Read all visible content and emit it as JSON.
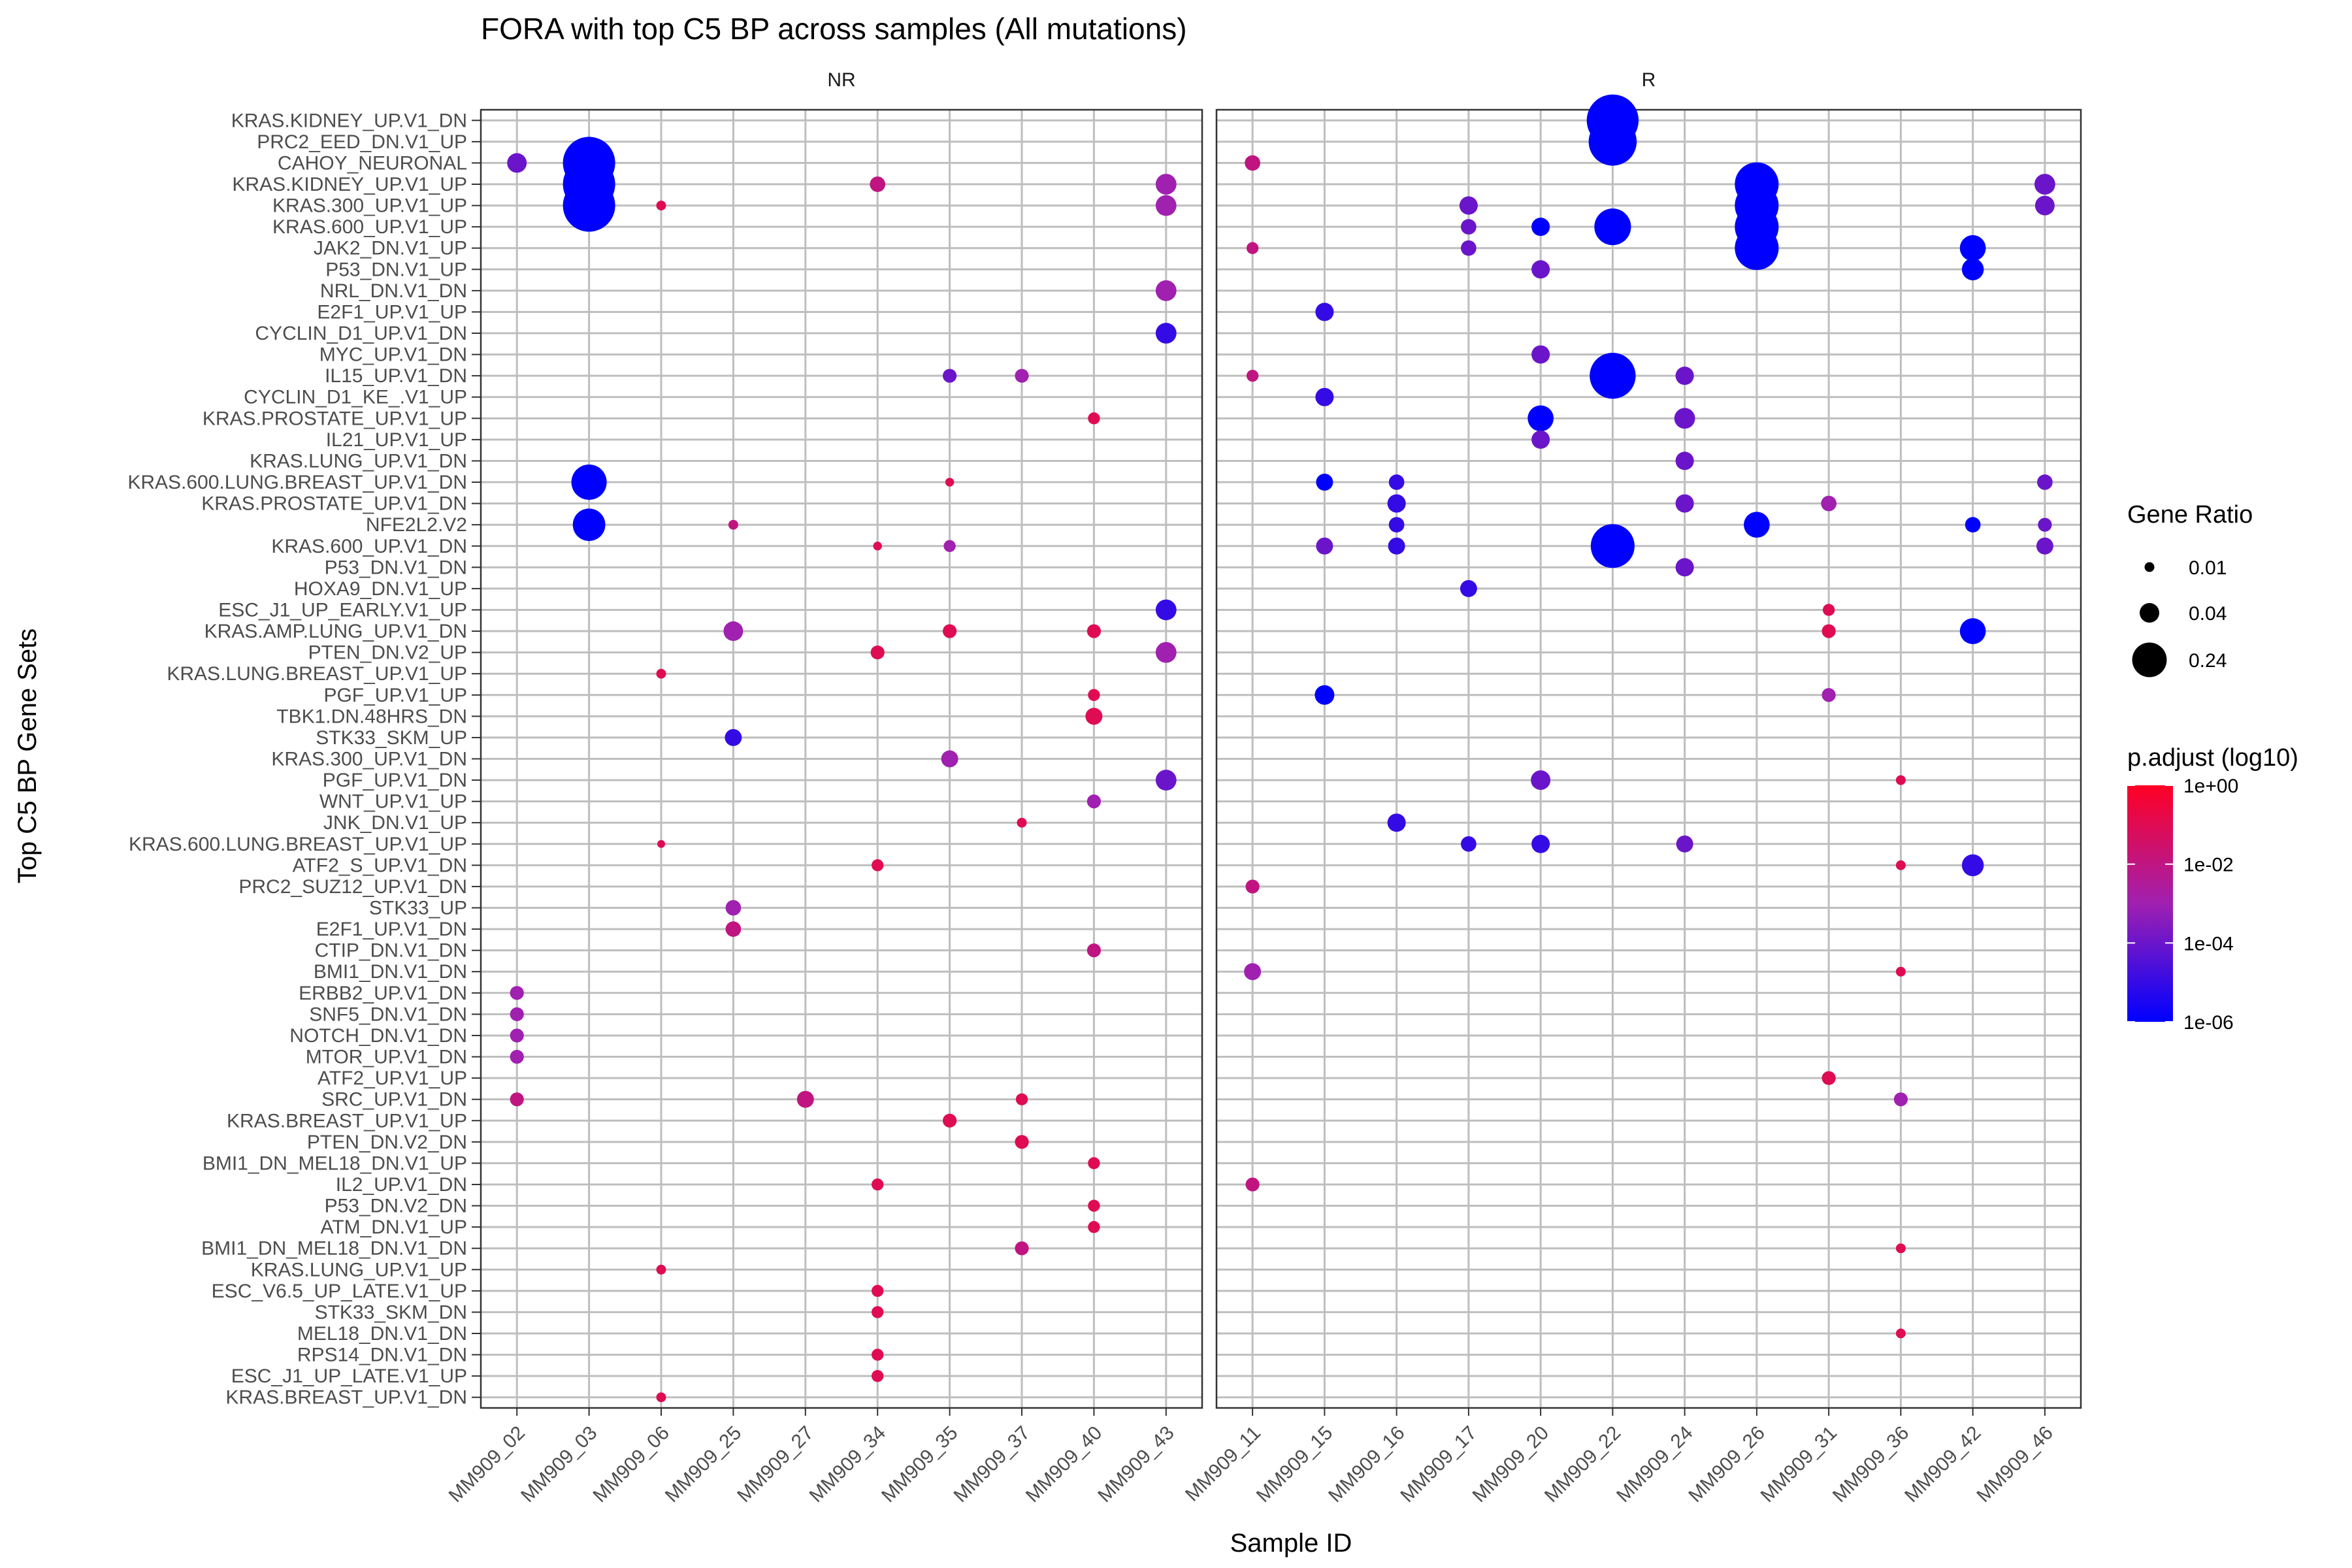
{
  "chart_data": {
    "type": "scatter",
    "title": "FORA with top C5 BP across samples (All mutations)",
    "xlabel": "Sample ID",
    "ylabel": "Top C5 BP Gene Sets",
    "facets": [
      {
        "name": "NR",
        "samples": [
          "MM909_02",
          "MM909_03",
          "MM909_06",
          "MM909_25",
          "MM909_27",
          "MM909_34",
          "MM909_35",
          "MM909_37",
          "MM909_40",
          "MM909_43"
        ]
      },
      {
        "name": "R",
        "samples": [
          "MM909_11",
          "MM909_15",
          "MM909_16",
          "MM909_17",
          "MM909_20",
          "MM909_22",
          "MM909_24",
          "MM909_26",
          "MM909_31",
          "MM909_36",
          "MM909_42",
          "MM909_46"
        ]
      }
    ],
    "gene_sets": [
      "KRAS.KIDNEY_UP.V1_DN",
      "PRC2_EED_DN.V1_UP",
      "CAHOY_NEURONAL",
      "KRAS.KIDNEY_UP.V1_UP",
      "KRAS.300_UP.V1_UP",
      "KRAS.600_UP.V1_UP",
      "JAK2_DN.V1_UP",
      "P53_DN.V1_UP",
      "NRL_DN.V1_DN",
      "E2F1_UP.V1_UP",
      "CYCLIN_D1_UP.V1_DN",
      "MYC_UP.V1_DN",
      "IL15_UP.V1_DN",
      "CYCLIN_D1_KE_.V1_UP",
      "KRAS.PROSTATE_UP.V1_UP",
      "IL21_UP.V1_UP",
      "KRAS.LUNG_UP.V1_DN",
      "KRAS.600.LUNG.BREAST_UP.V1_DN",
      "KRAS.PROSTATE_UP.V1_DN",
      "NFE2L2.V2",
      "KRAS.600_UP.V1_DN",
      "P53_DN.V1_DN",
      "HOXA9_DN.V1_UP",
      "ESC_J1_UP_EARLY.V1_UP",
      "KRAS.AMP.LUNG_UP.V1_DN",
      "PTEN_DN.V2_UP",
      "KRAS.LUNG.BREAST_UP.V1_UP",
      "PGF_UP.V1_UP",
      "TBK1.DN.48HRS_DN",
      "STK33_SKM_UP",
      "KRAS.300_UP.V1_DN",
      "PGF_UP.V1_DN",
      "WNT_UP.V1_UP",
      "JNK_DN.V1_UP",
      "KRAS.600.LUNG.BREAST_UP.V1_UP",
      "ATF2_S_UP.V1_DN",
      "PRC2_SUZ12_UP.V1_DN",
      "STK33_UP",
      "E2F1_UP.V1_DN",
      "CTIP_DN.V1_DN",
      "BMI1_DN.V1_DN",
      "ERBB2_UP.V1_DN",
      "SNF5_DN.V1_DN",
      "NOTCH_DN.V1_DN",
      "MTOR_UP.V1_DN",
      "ATF2_UP.V1_UP",
      "SRC_UP.V1_DN",
      "KRAS.BREAST_UP.V1_UP",
      "PTEN_DN.V2_DN",
      "BMI1_DN_MEL18_DN.V1_UP",
      "IL2_UP.V1_DN",
      "P53_DN.V2_DN",
      "ATM_DN.V1_UP",
      "BMI1_DN_MEL18_DN.V1_DN",
      "KRAS.LUNG_UP.V1_UP",
      "ESC_V6.5_UP_LATE.V1_UP",
      "STK33_SKM_DN",
      "MEL18_DN.V1_DN",
      "RPS14_DN.V1_DN",
      "ESC_J1_UP_LATE.V1_UP",
      "KRAS.BREAST_UP.V1_DN"
    ],
    "points": [
      {
        "sample": "MM909_02",
        "set": "CAHOY_NEURONAL",
        "gene_ratio": 0.04,
        "p_adjust": 0.0001
      },
      {
        "sample": "MM909_02",
        "set": "ERBB2_UP.V1_DN",
        "gene_ratio": 0.02,
        "p_adjust": 0.001
      },
      {
        "sample": "MM909_02",
        "set": "SNF5_DN.V1_DN",
        "gene_ratio": 0.02,
        "p_adjust": 0.001
      },
      {
        "sample": "MM909_02",
        "set": "NOTCH_DN.V1_DN",
        "gene_ratio": 0.02,
        "p_adjust": 0.001
      },
      {
        "sample": "MM909_02",
        "set": "MTOR_UP.V1_DN",
        "gene_ratio": 0.02,
        "p_adjust": 0.001
      },
      {
        "sample": "MM909_02",
        "set": "SRC_UP.V1_DN",
        "gene_ratio": 0.02,
        "p_adjust": 0.01
      },
      {
        "sample": "MM909_03",
        "set": "CAHOY_NEURONAL",
        "gene_ratio": 0.45,
        "p_adjust": 1e-06
      },
      {
        "sample": "MM909_03",
        "set": "KRAS.KIDNEY_UP.V1_UP",
        "gene_ratio": 0.35,
        "p_adjust": 1e-06
      },
      {
        "sample": "MM909_03",
        "set": "KRAS.300_UP.V1_UP",
        "gene_ratio": 0.35,
        "p_adjust": 1e-06
      },
      {
        "sample": "MM909_03",
        "set": "KRAS.600.LUNG.BREAST_UP.V1_DN",
        "gene_ratio": 0.13,
        "p_adjust": 1e-06
      },
      {
        "sample": "MM909_03",
        "set": "NFE2L2.V2",
        "gene_ratio": 0.11,
        "p_adjust": 1e-06
      },
      {
        "sample": "MM909_06",
        "set": "KRAS.300_UP.V1_UP",
        "gene_ratio": 0.01,
        "p_adjust": 0.1
      },
      {
        "sample": "MM909_06",
        "set": "KRAS.LUNG.BREAST_UP.V1_UP",
        "gene_ratio": 0.01,
        "p_adjust": 0.1
      },
      {
        "sample": "MM909_06",
        "set": "KRAS.600.LUNG.BREAST_UP.V1_UP",
        "gene_ratio": 0.005,
        "p_adjust": 0.1
      },
      {
        "sample": "MM909_06",
        "set": "KRAS.LUNG_UP.V1_UP",
        "gene_ratio": 0.01,
        "p_adjust": 0.1
      },
      {
        "sample": "MM909_06",
        "set": "KRAS.BREAST_UP.V1_DN",
        "gene_ratio": 0.01,
        "p_adjust": 0.1
      },
      {
        "sample": "MM909_25",
        "set": "NFE2L2.V2",
        "gene_ratio": 0.01,
        "p_adjust": 0.01
      },
      {
        "sample": "MM909_25",
        "set": "KRAS.AMP.LUNG_UP.V1_DN",
        "gene_ratio": 0.04,
        "p_adjust": 0.001
      },
      {
        "sample": "MM909_25",
        "set": "STK33_SKM_UP",
        "gene_ratio": 0.03,
        "p_adjust": 1e-05
      },
      {
        "sample": "MM909_25",
        "set": "STK33_UP",
        "gene_ratio": 0.025,
        "p_adjust": 0.001
      },
      {
        "sample": "MM909_25",
        "set": "E2F1_UP.V1_DN",
        "gene_ratio": 0.025,
        "p_adjust": 0.01
      },
      {
        "sample": "MM909_27",
        "set": "SRC_UP.V1_DN",
        "gene_ratio": 0.03,
        "p_adjust": 0.01
      },
      {
        "sample": "MM909_34",
        "set": "KRAS.KIDNEY_UP.V1_UP",
        "gene_ratio": 0.025,
        "p_adjust": 0.01
      },
      {
        "sample": "MM909_34",
        "set": "KRAS.600_UP.V1_DN",
        "gene_ratio": 0.008,
        "p_adjust": 0.1
      },
      {
        "sample": "MM909_34",
        "set": "PTEN_DN.V2_UP",
        "gene_ratio": 0.02,
        "p_adjust": 0.1
      },
      {
        "sample": "MM909_34",
        "set": "ATF2_S_UP.V1_DN",
        "gene_ratio": 0.015,
        "p_adjust": 0.1
      },
      {
        "sample": "MM909_34",
        "set": "IL2_UP.V1_DN",
        "gene_ratio": 0.015,
        "p_adjust": 0.1
      },
      {
        "sample": "MM909_34",
        "set": "ESC_V6.5_UP_LATE.V1_UP",
        "gene_ratio": 0.015,
        "p_adjust": 0.1
      },
      {
        "sample": "MM909_34",
        "set": "STK33_SKM_DN",
        "gene_ratio": 0.015,
        "p_adjust": 0.1
      },
      {
        "sample": "MM909_34",
        "set": "RPS14_DN.V1_DN",
        "gene_ratio": 0.015,
        "p_adjust": 0.1
      },
      {
        "sample": "MM909_34",
        "set": "ESC_J1_UP_LATE.V1_UP",
        "gene_ratio": 0.015,
        "p_adjust": 0.1
      },
      {
        "sample": "MM909_35",
        "set": "IL15_UP.V1_DN",
        "gene_ratio": 0.02,
        "p_adjust": 0.0001
      },
      {
        "sample": "MM909_35",
        "set": "KRAS.600.LUNG.BREAST_UP.V1_DN",
        "gene_ratio": 0.008,
        "p_adjust": 0.1
      },
      {
        "sample": "MM909_35",
        "set": "KRAS.600_UP.V1_DN",
        "gene_ratio": 0.015,
        "p_adjust": 0.001
      },
      {
        "sample": "MM909_35",
        "set": "KRAS.AMP.LUNG_UP.V1_DN",
        "gene_ratio": 0.02,
        "p_adjust": 0.1
      },
      {
        "sample": "MM909_35",
        "set": "KRAS.300_UP.V1_DN",
        "gene_ratio": 0.03,
        "p_adjust": 0.001
      },
      {
        "sample": "MM909_35",
        "set": "KRAS.BREAST_UP.V1_UP",
        "gene_ratio": 0.02,
        "p_adjust": 0.1
      },
      {
        "sample": "MM909_37",
        "set": "IL15_UP.V1_DN",
        "gene_ratio": 0.02,
        "p_adjust": 0.001
      },
      {
        "sample": "MM909_37",
        "set": "JNK_DN.V1_UP",
        "gene_ratio": 0.01,
        "p_adjust": 0.1
      },
      {
        "sample": "MM909_37",
        "set": "SRC_UP.V1_DN",
        "gene_ratio": 0.015,
        "p_adjust": 0.1
      },
      {
        "sample": "MM909_37",
        "set": "PTEN_DN.V2_DN",
        "gene_ratio": 0.02,
        "p_adjust": 0.1
      },
      {
        "sample": "MM909_37",
        "set": "BMI1_DN_MEL18_DN.V1_DN",
        "gene_ratio": 0.02,
        "p_adjust": 0.01
      },
      {
        "sample": "MM909_40",
        "set": "KRAS.PROSTATE_UP.V1_UP",
        "gene_ratio": 0.015,
        "p_adjust": 0.1
      },
      {
        "sample": "MM909_40",
        "set": "KRAS.AMP.LUNG_UP.V1_DN",
        "gene_ratio": 0.02,
        "p_adjust": 0.1
      },
      {
        "sample": "MM909_40",
        "set": "PGF_UP.V1_UP",
        "gene_ratio": 0.015,
        "p_adjust": 0.1
      },
      {
        "sample": "MM909_40",
        "set": "TBK1.DN.48HRS_DN",
        "gene_ratio": 0.03,
        "p_adjust": 0.1
      },
      {
        "sample": "MM909_40",
        "set": "WNT_UP.V1_UP",
        "gene_ratio": 0.02,
        "p_adjust": 0.001
      },
      {
        "sample": "MM909_40",
        "set": "CTIP_DN.V1_DN",
        "gene_ratio": 0.02,
        "p_adjust": 0.01
      },
      {
        "sample": "MM909_40",
        "set": "BMI1_DN_MEL18_DN.V1_UP",
        "gene_ratio": 0.015,
        "p_adjust": 0.1
      },
      {
        "sample": "MM909_40",
        "set": "P53_DN.V2_DN",
        "gene_ratio": 0.015,
        "p_adjust": 0.1
      },
      {
        "sample": "MM909_40",
        "set": "ATM_DN.V1_UP",
        "gene_ratio": 0.015,
        "p_adjust": 0.1
      },
      {
        "sample": "MM909_43",
        "set": "KRAS.KIDNEY_UP.V1_UP",
        "gene_ratio": 0.045,
        "p_adjust": 0.001
      },
      {
        "sample": "MM909_43",
        "set": "KRAS.300_UP.V1_UP",
        "gene_ratio": 0.045,
        "p_adjust": 0.001
      },
      {
        "sample": "MM909_43",
        "set": "NRL_DN.V1_DN",
        "gene_ratio": 0.045,
        "p_adjust": 0.001
      },
      {
        "sample": "MM909_43",
        "set": "CYCLIN_D1_UP.V1_DN",
        "gene_ratio": 0.045,
        "p_adjust": 1e-05
      },
      {
        "sample": "MM909_43",
        "set": "ESC_J1_UP_EARLY.V1_UP",
        "gene_ratio": 0.045,
        "p_adjust": 1e-05
      },
      {
        "sample": "MM909_43",
        "set": "PTEN_DN.V2_UP",
        "gene_ratio": 0.045,
        "p_adjust": 0.001
      },
      {
        "sample": "MM909_43",
        "set": "PGF_UP.V1_DN",
        "gene_ratio": 0.045,
        "p_adjust": 0.0001
      },
      {
        "sample": "MM909_11",
        "set": "CAHOY_NEURONAL",
        "gene_ratio": 0.025,
        "p_adjust": 0.01
      },
      {
        "sample": "MM909_11",
        "set": "JAK2_DN.V1_UP",
        "gene_ratio": 0.015,
        "p_adjust": 0.01
      },
      {
        "sample": "MM909_11",
        "set": "IL15_UP.V1_DN",
        "gene_ratio": 0.015,
        "p_adjust": 0.01
      },
      {
        "sample": "MM909_11",
        "set": "PRC2_SUZ12_UP.V1_DN",
        "gene_ratio": 0.02,
        "p_adjust": 0.01
      },
      {
        "sample": "MM909_11",
        "set": "BMI1_DN.V1_DN",
        "gene_ratio": 0.03,
        "p_adjust": 0.001
      },
      {
        "sample": "MM909_11",
        "set": "IL2_UP.V1_DN",
        "gene_ratio": 0.02,
        "p_adjust": 0.01
      },
      {
        "sample": "MM909_15",
        "set": "E2F1_UP.V1_UP",
        "gene_ratio": 0.035,
        "p_adjust": 1e-05
      },
      {
        "sample": "MM909_15",
        "set": "CYCLIN_D1_KE_.V1_UP",
        "gene_ratio": 0.035,
        "p_adjust": 1e-05
      },
      {
        "sample": "MM909_15",
        "set": "KRAS.600.LUNG.BREAST_UP.V1_DN",
        "gene_ratio": 0.03,
        "p_adjust": 1e-06
      },
      {
        "sample": "MM909_15",
        "set": "KRAS.600_UP.V1_DN",
        "gene_ratio": 0.03,
        "p_adjust": 0.0001
      },
      {
        "sample": "MM909_15",
        "set": "PGF_UP.V1_UP",
        "gene_ratio": 0.04,
        "p_adjust": 1e-06
      },
      {
        "sample": "MM909_16",
        "set": "KRAS.600.LUNG.BREAST_UP.V1_DN",
        "gene_ratio": 0.025,
        "p_adjust": 1e-05
      },
      {
        "sample": "MM909_16",
        "set": "KRAS.PROSTATE_UP.V1_DN",
        "gene_ratio": 0.035,
        "p_adjust": 1e-05
      },
      {
        "sample": "MM909_16",
        "set": "NFE2L2.V2",
        "gene_ratio": 0.025,
        "p_adjust": 1e-05
      },
      {
        "sample": "MM909_16",
        "set": "KRAS.600_UP.V1_DN",
        "gene_ratio": 0.03,
        "p_adjust": 1e-05
      },
      {
        "sample": "MM909_16",
        "set": "JNK_DN.V1_UP",
        "gene_ratio": 0.035,
        "p_adjust": 1e-05
      },
      {
        "sample": "MM909_17",
        "set": "KRAS.300_UP.V1_UP",
        "gene_ratio": 0.035,
        "p_adjust": 0.0001
      },
      {
        "sample": "MM909_17",
        "set": "KRAS.600_UP.V1_UP",
        "gene_ratio": 0.025,
        "p_adjust": 0.0001
      },
      {
        "sample": "MM909_17",
        "set": "JAK2_DN.V1_UP",
        "gene_ratio": 0.025,
        "p_adjust": 0.0001
      },
      {
        "sample": "MM909_17",
        "set": "HOXA9_DN.V1_UP",
        "gene_ratio": 0.03,
        "p_adjust": 1e-05
      },
      {
        "sample": "MM909_17",
        "set": "KRAS.600.LUNG.BREAST_UP.V1_UP",
        "gene_ratio": 0.025,
        "p_adjust": 1e-05
      },
      {
        "sample": "MM909_20",
        "set": "KRAS.600_UP.V1_UP",
        "gene_ratio": 0.035,
        "p_adjust": 1e-06
      },
      {
        "sample": "MM909_20",
        "set": "P53_DN.V1_UP",
        "gene_ratio": 0.035,
        "p_adjust": 0.0001
      },
      {
        "sample": "MM909_20",
        "set": "MYC_UP.V1_DN",
        "gene_ratio": 0.035,
        "p_adjust": 0.0001
      },
      {
        "sample": "MM909_20",
        "set": "KRAS.PROSTATE_UP.V1_UP",
        "gene_ratio": 0.07,
        "p_adjust": 1e-06
      },
      {
        "sample": "MM909_20",
        "set": "IL21_UP.V1_UP",
        "gene_ratio": 0.035,
        "p_adjust": 0.0001
      },
      {
        "sample": "MM909_20",
        "set": "PGF_UP.V1_DN",
        "gene_ratio": 0.04,
        "p_adjust": 0.0001
      },
      {
        "sample": "MM909_20",
        "set": "KRAS.600.LUNG.BREAST_UP.V1_UP",
        "gene_ratio": 0.035,
        "p_adjust": 1e-05
      },
      {
        "sample": "MM909_22",
        "set": "KRAS.KIDNEY_UP.V1_DN",
        "gene_ratio": 0.28,
        "p_adjust": 1e-06
      },
      {
        "sample": "MM909_22",
        "set": "PRC2_EED_DN.V1_UP",
        "gene_ratio": 0.24,
        "p_adjust": 1e-06
      },
      {
        "sample": "MM909_22",
        "set": "KRAS.600_UP.V1_UP",
        "gene_ratio": 0.14,
        "p_adjust": 1e-06
      },
      {
        "sample": "MM909_22",
        "set": "IL15_UP.V1_DN",
        "gene_ratio": 0.22,
        "p_adjust": 1e-06
      },
      {
        "sample": "MM909_22",
        "set": "KRAS.600_UP.V1_DN",
        "gene_ratio": 0.2,
        "p_adjust": 1e-06
      },
      {
        "sample": "MM909_24",
        "set": "IL15_UP.V1_DN",
        "gene_ratio": 0.035,
        "p_adjust": 0.0001
      },
      {
        "sample": "MM909_24",
        "set": "KRAS.PROSTATE_UP.V1_UP",
        "gene_ratio": 0.045,
        "p_adjust": 0.0001
      },
      {
        "sample": "MM909_24",
        "set": "KRAS.LUNG_UP.V1_DN",
        "gene_ratio": 0.035,
        "p_adjust": 0.0001
      },
      {
        "sample": "MM909_24",
        "set": "KRAS.PROSTATE_UP.V1_DN",
        "gene_ratio": 0.035,
        "p_adjust": 0.0001
      },
      {
        "sample": "MM909_24",
        "set": "P53_DN.V1_DN",
        "gene_ratio": 0.035,
        "p_adjust": 0.0001
      },
      {
        "sample": "MM909_24",
        "set": "KRAS.600.LUNG.BREAST_UP.V1_UP",
        "gene_ratio": 0.03,
        "p_adjust": 0.0001
      },
      {
        "sample": "MM909_26",
        "set": "KRAS.KIDNEY_UP.V1_UP",
        "gene_ratio": 0.2,
        "p_adjust": 1e-06
      },
      {
        "sample": "MM909_26",
        "set": "KRAS.300_UP.V1_UP",
        "gene_ratio": 0.2,
        "p_adjust": 1e-06
      },
      {
        "sample": "MM909_26",
        "set": "KRAS.600_UP.V1_UP",
        "gene_ratio": 0.2,
        "p_adjust": 1e-06
      },
      {
        "sample": "MM909_26",
        "set": "JAK2_DN.V1_UP",
        "gene_ratio": 0.2,
        "p_adjust": 1e-06
      },
      {
        "sample": "MM909_26",
        "set": "NFE2L2.V2",
        "gene_ratio": 0.07,
        "p_adjust": 1e-06
      },
      {
        "sample": "MM909_31",
        "set": "KRAS.PROSTATE_UP.V1_DN",
        "gene_ratio": 0.025,
        "p_adjust": 0.001
      },
      {
        "sample": "MM909_31",
        "set": "ESC_J1_UP_EARLY.V1_UP",
        "gene_ratio": 0.015,
        "p_adjust": 0.1
      },
      {
        "sample": "MM909_31",
        "set": "KRAS.AMP.LUNG_UP.V1_DN",
        "gene_ratio": 0.02,
        "p_adjust": 0.1
      },
      {
        "sample": "MM909_31",
        "set": "PGF_UP.V1_UP",
        "gene_ratio": 0.02,
        "p_adjust": 0.001
      },
      {
        "sample": "MM909_31",
        "set": "ATF2_UP.V1_UP",
        "gene_ratio": 0.02,
        "p_adjust": 0.1
      },
      {
        "sample": "MM909_36",
        "set": "PGF_UP.V1_DN",
        "gene_ratio": 0.01,
        "p_adjust": 0.1
      },
      {
        "sample": "MM909_36",
        "set": "ATF2_S_UP.V1_DN",
        "gene_ratio": 0.01,
        "p_adjust": 0.1
      },
      {
        "sample": "MM909_36",
        "set": "BMI1_DN.V1_DN",
        "gene_ratio": 0.01,
        "p_adjust": 0.1
      },
      {
        "sample": "MM909_36",
        "set": "SRC_UP.V1_DN",
        "gene_ratio": 0.02,
        "p_adjust": 0.001
      },
      {
        "sample": "MM909_36",
        "set": "BMI1_DN_MEL18_DN.V1_DN",
        "gene_ratio": 0.01,
        "p_adjust": 0.1
      },
      {
        "sample": "MM909_36",
        "set": "MEL18_DN.V1_DN",
        "gene_ratio": 0.01,
        "p_adjust": 0.1
      },
      {
        "sample": "MM909_42",
        "set": "JAK2_DN.V1_UP",
        "gene_ratio": 0.07,
        "p_adjust": 1e-06
      },
      {
        "sample": "MM909_42",
        "set": "P53_DN.V1_UP",
        "gene_ratio": 0.05,
        "p_adjust": 1e-06
      },
      {
        "sample": "MM909_42",
        "set": "NFE2L2.V2",
        "gene_ratio": 0.025,
        "p_adjust": 1e-06
      },
      {
        "sample": "MM909_42",
        "set": "KRAS.AMP.LUNG_UP.V1_DN",
        "gene_ratio": 0.07,
        "p_adjust": 1e-06
      },
      {
        "sample": "MM909_42",
        "set": "ATF2_S_UP.V1_DN",
        "gene_ratio": 0.05,
        "p_adjust": 1e-05
      },
      {
        "sample": "MM909_46",
        "set": "KRAS.KIDNEY_UP.V1_UP",
        "gene_ratio": 0.045,
        "p_adjust": 0.0001
      },
      {
        "sample": "MM909_46",
        "set": "KRAS.300_UP.V1_UP",
        "gene_ratio": 0.04,
        "p_adjust": 0.0001
      },
      {
        "sample": "MM909_46",
        "set": "KRAS.600.LUNG.BREAST_UP.V1_DN",
        "gene_ratio": 0.025,
        "p_adjust": 0.0001
      },
      {
        "sample": "MM909_46",
        "set": "NFE2L2.V2",
        "gene_ratio": 0.02,
        "p_adjust": 0.0001
      },
      {
        "sample": "MM909_46",
        "set": "KRAS.600_UP.V1_DN",
        "gene_ratio": 0.03,
        "p_adjust": 0.0001
      }
    ],
    "size_legend": {
      "title": "Gene Ratio",
      "values": [
        0.01,
        0.04,
        0.24
      ],
      "labels": [
        "0.01",
        "0.04",
        "0.24"
      ]
    },
    "color_legend": {
      "title": "p.adjust (log10)",
      "low_color": "#0000ff",
      "mid_color": "#a020b0",
      "high_color": "#ff0024",
      "range": [
        1e-06,
        1
      ],
      "ticks": [
        1,
        0.01,
        0.0001,
        1e-06
      ],
      "tick_labels": [
        "1e+00",
        "1e-02",
        "1e-04",
        "1e-06"
      ]
    },
    "grid": true,
    "legend_position": "right"
  }
}
